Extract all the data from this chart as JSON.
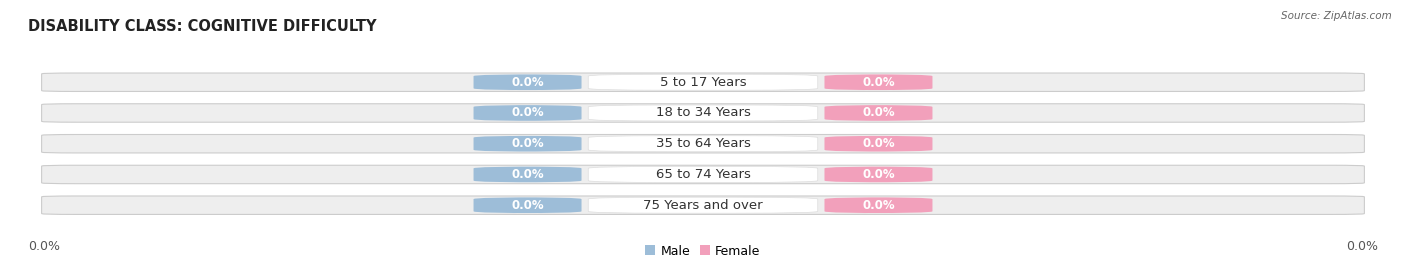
{
  "title": "DISABILITY CLASS: COGNITIVE DIFFICULTY",
  "source_text": "Source: ZipAtlas.com",
  "categories": [
    "5 to 17 Years",
    "18 to 34 Years",
    "35 to 64 Years",
    "65 to 74 Years",
    "75 Years and over"
  ],
  "male_values": [
    0.0,
    0.0,
    0.0,
    0.0,
    0.0
  ],
  "female_values": [
    0.0,
    0.0,
    0.0,
    0.0,
    0.0
  ],
  "male_color": "#9dbdd8",
  "female_color": "#f2a0bb",
  "bar_bg_color": "#eeeeee",
  "bar_border_color": "#cccccc",
  "bar_bg_color_alt": "#e8e8e8",
  "male_label": "Male",
  "female_label": "Female",
  "background_color": "#ffffff",
  "title_fontsize": 10.5,
  "cat_fontsize": 9.5,
  "value_fontsize": 8.5,
  "legend_fontsize": 9,
  "axis_val_fontsize": 9,
  "axis_label_left": "0.0%",
  "axis_label_right": "0.0%"
}
